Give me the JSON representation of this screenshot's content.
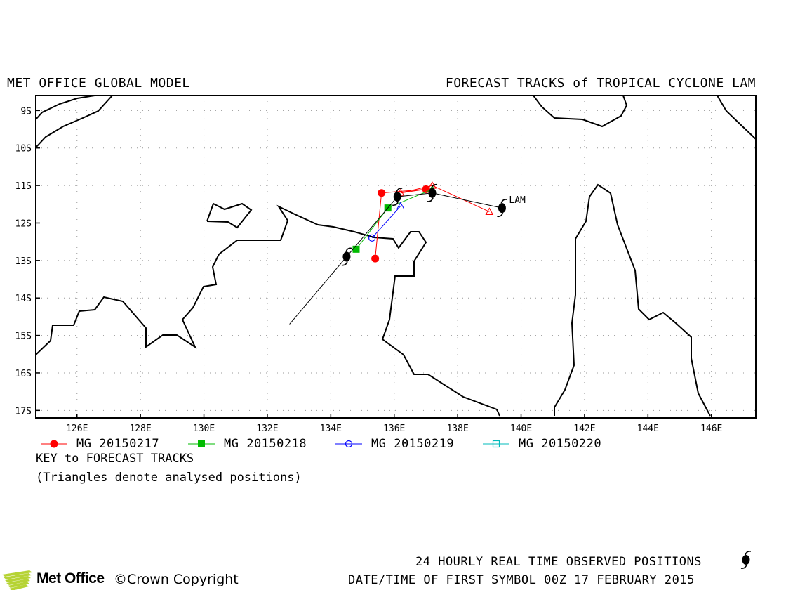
{
  "header": {
    "left_title": "MET OFFICE GLOBAL MODEL",
    "right_title": "FORECAST TRACKS of TROPICAL CYCLONE LAM"
  },
  "map": {
    "lon_range": [
      124.7,
      147.4
    ],
    "lat_range": [
      -17.2,
      -8.6
    ],
    "lon_ticks": [
      "126E",
      "128E",
      "130E",
      "132E",
      "134E",
      "136E",
      "138E",
      "140E",
      "142E",
      "144E",
      "146E"
    ],
    "lat_ticks": [
      "9S",
      "10S",
      "11S",
      "12S",
      "13S",
      "14S",
      "15S",
      "16S",
      "17S"
    ],
    "grid": "dotted",
    "storm_label": "LAM"
  },
  "chart_data": {
    "type": "scatter",
    "title": "FORECAST TRACKS of TROPICAL CYCLONE LAM",
    "xlabel": "",
    "ylabel": "",
    "xlim": [
      124.7,
      147.4
    ],
    "ylim": [
      -17.2,
      -8.6
    ],
    "series": [
      {
        "name": "MG 20150217",
        "color": "#ff0000",
        "marker": "filled-circle",
        "analysed": [
          [
            139.0,
            -11.7
          ],
          [
            137.2,
            -11.0
          ],
          [
            136.2,
            -11.2
          ]
        ],
        "forecast": [
          [
            137.0,
            -11.1
          ],
          [
            135.6,
            -11.2
          ],
          [
            135.4,
            -12.95
          ]
        ]
      },
      {
        "name": "MG 20150218",
        "color": "#00bb00",
        "marker": "filled-square",
        "analysed": [
          [
            137.2,
            -11.1
          ]
        ],
        "forecast": [
          [
            135.8,
            -11.6
          ],
          [
            134.8,
            -12.7
          ]
        ]
      },
      {
        "name": "MG 20150219",
        "color": "#0000ff",
        "marker": "open-circle",
        "analysed": [
          [
            136.2,
            -11.55
          ]
        ],
        "forecast": [
          [
            135.3,
            -12.4
          ]
        ]
      },
      {
        "name": "MG 20150220",
        "color": "#00bbbb",
        "marker": "open-square",
        "analysed": [],
        "forecast": []
      }
    ],
    "observed": {
      "color": "#000000",
      "points": [
        [
          139.4,
          -11.6
        ],
        [
          137.2,
          -11.2
        ],
        [
          136.1,
          -11.3
        ],
        [
          134.5,
          -12.9
        ]
      ],
      "tail_end": [
        132.7,
        -14.7
      ]
    }
  },
  "legend": {
    "items": [
      "MG 20150217",
      "MG 20150218",
      "MG 20150219",
      "MG 20150220"
    ]
  },
  "key": {
    "title": "KEY to FORECAST TRACKS",
    "note": "(Triangles denote analysed positions)"
  },
  "footer": {
    "observed_label": "24 HOURLY REAL TIME OBSERVED POSITIONS",
    "datetime_label": "DATE/TIME OF FIRST SYMBOL 00Z 17 FEBRUARY 2015",
    "logo": "Met Office",
    "copyright": "Crown Copyright"
  }
}
